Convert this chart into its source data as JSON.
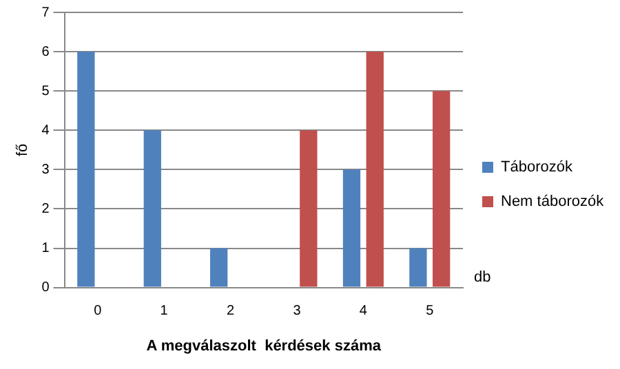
{
  "chart_data": {
    "type": "bar",
    "ylabel": "fő",
    "xlabel": "A megválaszolt  kérdések száma",
    "categories": [
      "0",
      "1",
      "2",
      "3",
      "4",
      "5"
    ],
    "series": [
      {
        "name": "Táborozók",
        "color": "#4f81bd",
        "values": [
          6,
          4,
          1,
          0,
          3,
          1
        ]
      },
      {
        "name": "Nem táborozók",
        "color": "#c0504d",
        "values": [
          0,
          0,
          0,
          4,
          6,
          5
        ]
      }
    ],
    "ylim": [
      0,
      7
    ],
    "yticks": [
      0,
      1,
      2,
      3,
      4,
      5,
      6,
      7
    ],
    "grid": "y",
    "legend": "right",
    "annotations": [
      "db"
    ]
  }
}
